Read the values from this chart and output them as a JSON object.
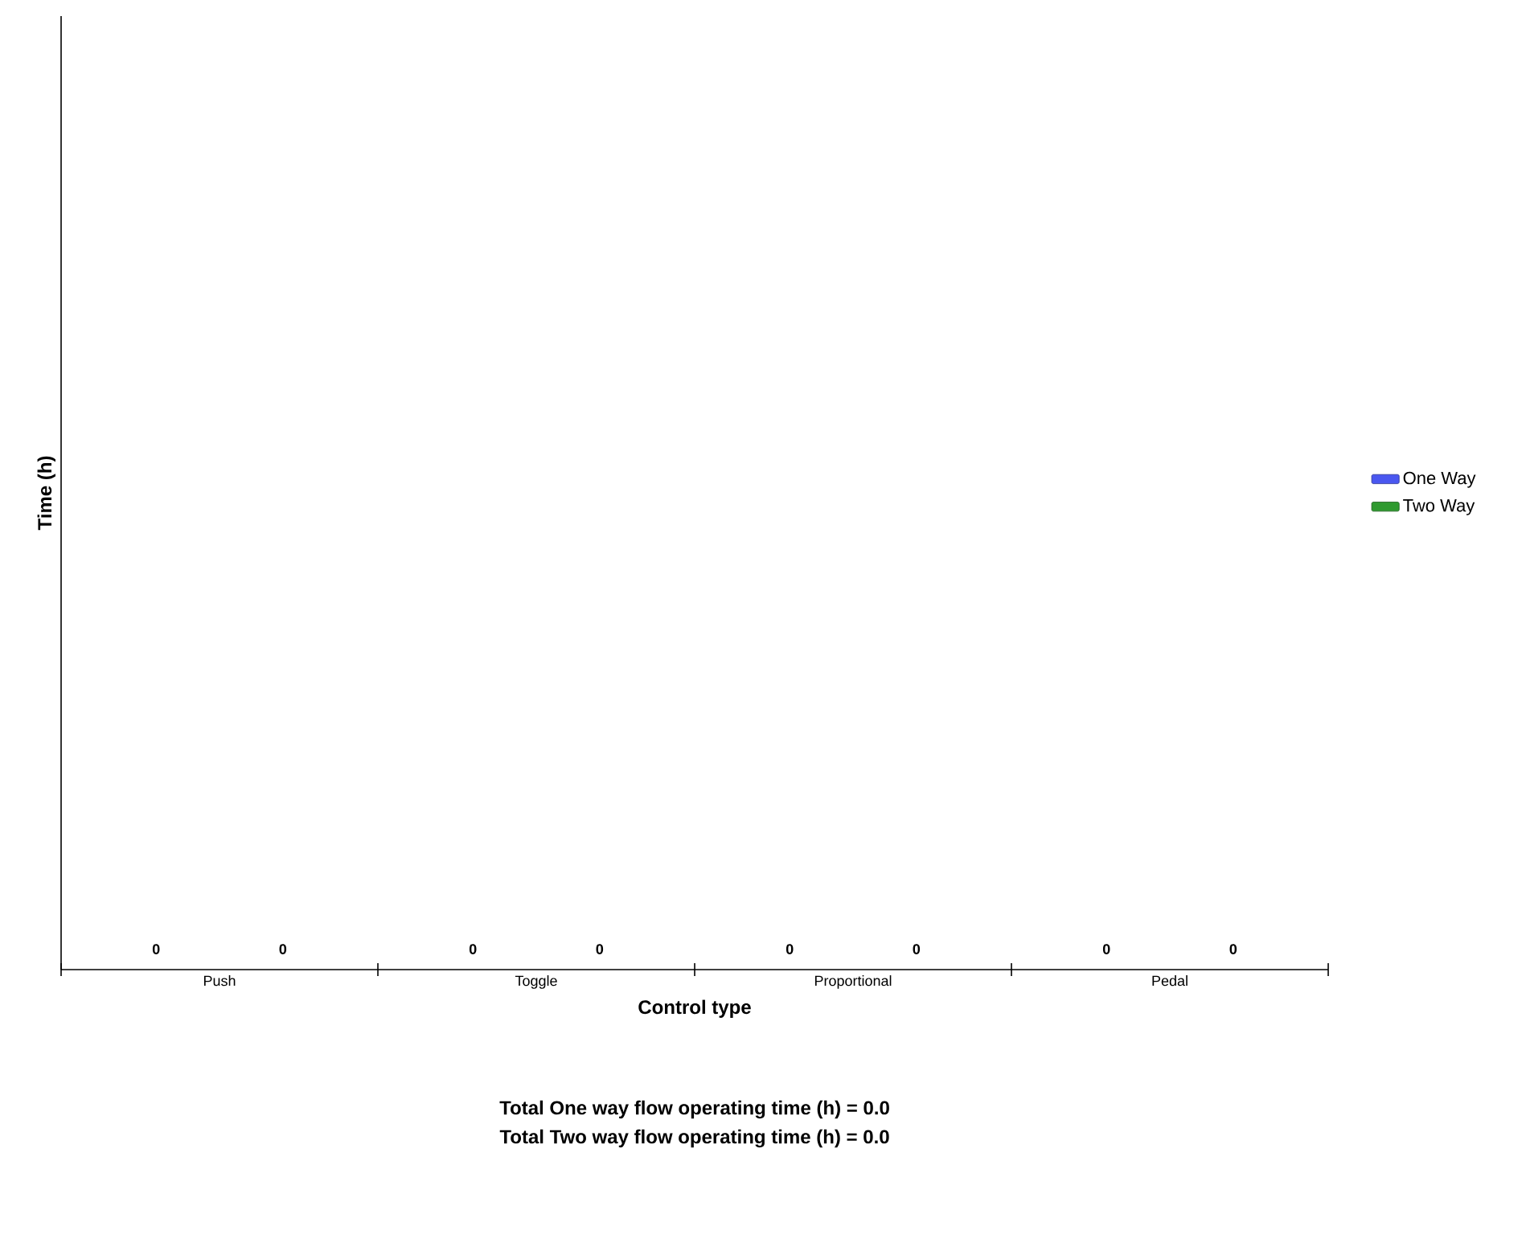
{
  "chart_data": {
    "type": "other",
    "xlabel": "Control type",
    "ylabel": "Time (h)",
    "categories": [
      "Push",
      "Toggle",
      "Proportional",
      "Pedal"
    ],
    "series": [
      {
        "name": "One Way",
        "color": "#4a57f0",
        "values": [
          0,
          0,
          0,
          0
        ]
      },
      {
        "name": "Two Way",
        "color": "#2f9a2f",
        "values": [
          0,
          0,
          0,
          0
        ]
      }
    ],
    "data_labels": true,
    "legend": "right",
    "annotations": [
      "Total One way flow operating time (h) = 0.0",
      "Total Two way flow operating time (h) = 0.0"
    ]
  }
}
